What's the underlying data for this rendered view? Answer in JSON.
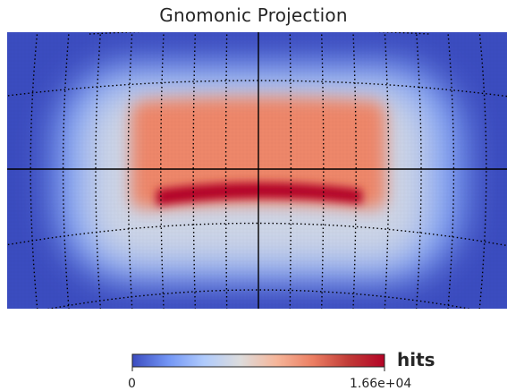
{
  "chart_data": {
    "type": "heatmap",
    "projection": "gnomonic",
    "title": "Gnomonic Projection",
    "colorbar": {
      "label": "hits",
      "min": 0,
      "max": 16600,
      "tick_labels": [
        "0",
        "1.66e+04"
      ],
      "colormap": [
        "#3b4cc0",
        "#7396f5",
        "#b0cbfc",
        "#dddcdc",
        "#f6b69a",
        "#ec7f63",
        "#c13b37",
        "#b40426"
      ]
    },
    "graticule": "dotted",
    "center_crosshair": true,
    "hit_region": {
      "plateau_hits": 11500,
      "peak_band_hits": 16600,
      "background_hits": 0
    }
  }
}
